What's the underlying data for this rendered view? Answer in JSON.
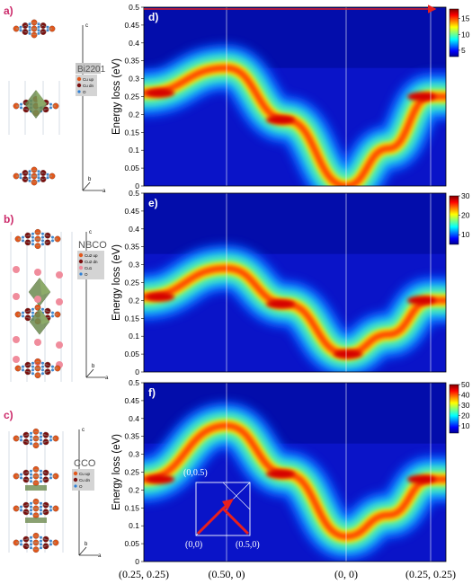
{
  "left_panels": [
    {
      "letter": "a)",
      "compound": "Bi2201",
      "legend": [
        "Cu up",
        "Cu dn",
        "O"
      ],
      "axes": {
        "a": "a",
        "b": "b",
        "c": "c"
      }
    },
    {
      "letter": "b)",
      "compound": "NBCO",
      "legend": [
        "Cu2 up",
        "Cu2 dn",
        "Cu1",
        "O"
      ],
      "axes": {
        "a": "a",
        "b": "b",
        "c": "c"
      }
    },
    {
      "letter": "c)",
      "compound": "CCO",
      "legend": [
        "Cu up",
        "Cu dn",
        "O"
      ],
      "axes": {
        "a": "a",
        "b": "b",
        "c": "c"
      }
    }
  ],
  "right_panels": [
    {
      "letter": "d)",
      "colorbar_ticks": [
        "15",
        "10",
        "5"
      ]
    },
    {
      "letter": "e)",
      "colorbar_ticks": [
        "30",
        "20",
        "10"
      ]
    },
    {
      "letter": "f)",
      "colorbar_ticks": [
        "50",
        "40",
        "30",
        "20",
        "10"
      ]
    }
  ],
  "inset": {
    "labels": {
      "top": "(0,0.5)",
      "origin": "(0,0)",
      "right": "(0.5,0)"
    }
  },
  "chart_data": [
    {
      "type": "heatmap",
      "title": "",
      "ylabel": "Energy loss (eV)",
      "xlabel": "",
      "y_ticks": [
        "0",
        "0.05",
        "0.1",
        "0.15",
        "0.2",
        "0.25",
        "0.3",
        "0.35",
        "0.4",
        "0.45",
        "0.5"
      ],
      "ylim": [
        0,
        0.5
      ],
      "x_tick_labels": [
        "(0.25, 0.25)",
        "(0.50, 0)",
        "(0, 0)",
        "(0.25, 0.25)"
      ],
      "colorbar": {
        "min": 3,
        "max": 18,
        "ticks": [
          5,
          10,
          15
        ]
      },
      "dispersion": {
        "x": [
          0,
          1,
          2,
          3
        ],
        "y": [
          0.26,
          0.33,
          0.0,
          0.25
        ]
      },
      "accent_color": "#e8201d"
    },
    {
      "type": "heatmap",
      "title": "",
      "ylabel": "Energy loss (eV)",
      "xlabel": "",
      "y_ticks": [
        "0",
        "0.05",
        "0.1",
        "0.15",
        "0.2",
        "0.25",
        "0.3",
        "0.35",
        "0.4",
        "0.45",
        "0.5"
      ],
      "ylim": [
        0,
        0.5
      ],
      "colorbar": {
        "min": 5,
        "max": 30,
        "ticks": [
          10,
          20,
          30
        ]
      },
      "dispersion": {
        "x": [
          0,
          1,
          2,
          3
        ],
        "y": [
          0.21,
          0.29,
          0.05,
          0.2
        ]
      }
    },
    {
      "type": "heatmap",
      "title": "",
      "ylabel": "Energy loss (eV)",
      "xlabel": "",
      "y_ticks": [
        "0",
        "0.05",
        "0.1",
        "0.15",
        "0.2",
        "0.25",
        "0.3",
        "0.35",
        "0.4",
        "0.45",
        "0.5"
      ],
      "ylim": [
        0,
        0.5
      ],
      "colorbar": {
        "min": 3,
        "max": 50,
        "ticks": [
          10,
          20,
          30,
          40,
          50
        ]
      },
      "dispersion": {
        "x": [
          0,
          1,
          2,
          3
        ],
        "y": [
          0.23,
          0.38,
          0.07,
          0.23
        ]
      }
    }
  ]
}
